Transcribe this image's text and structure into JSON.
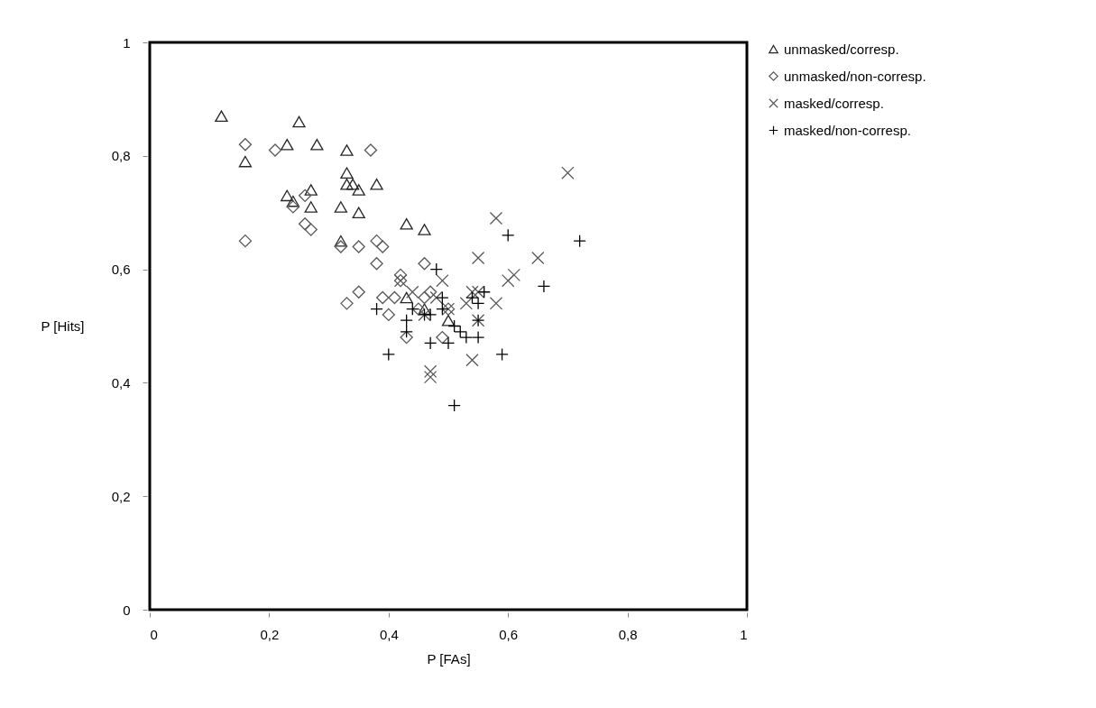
{
  "chart_data": {
    "type": "scatter",
    "xlabel": "P [FAs]",
    "ylabel": "P [Hits]",
    "xlim": [
      0,
      1
    ],
    "ylim": [
      0,
      1
    ],
    "xticks": [
      0,
      {
        "value": 0.2,
        "label": "0,2"
      },
      {
        "value": 0.4,
        "label": "0,4"
      },
      {
        "value": 0.6,
        "label": "0,6"
      },
      {
        "value": 0.8,
        "label": "0,8"
      },
      1
    ],
    "yticks": [
      0,
      {
        "value": 0.2,
        "label": "0,2"
      },
      {
        "value": 0.4,
        "label": "0,4"
      },
      {
        "value": 0.6,
        "label": "0,6"
      },
      {
        "value": 0.8,
        "label": "0,8"
      },
      1
    ],
    "grid": false,
    "legend": "right",
    "series": [
      {
        "name": "unmasked/corresp.",
        "color": "#262626",
        "marker": "triangle",
        "x": [
          0.12,
          0.25,
          0.23,
          0.28,
          0.33,
          0.16,
          0.33,
          0.33,
          0.34,
          0.35,
          0.38,
          0.27,
          0.23,
          0.24,
          0.27,
          0.32,
          0.35,
          0.43,
          0.46,
          0.32,
          0.43,
          0.46,
          0.5
        ],
        "values": [
          0.87,
          0.86,
          0.82,
          0.82,
          0.81,
          0.79,
          0.77,
          0.75,
          0.75,
          0.74,
          0.75,
          0.74,
          0.73,
          0.72,
          0.71,
          0.71,
          0.7,
          0.68,
          0.67,
          0.65,
          0.55,
          0.53,
          0.51
        ]
      },
      {
        "name": "unmasked/non-corresp.",
        "color": "#595959",
        "marker": "diamond",
        "x": [
          0.16,
          0.21,
          0.37,
          0.16,
          0.24,
          0.26,
          0.26,
          0.27,
          0.32,
          0.35,
          0.38,
          0.39,
          0.38,
          0.46,
          0.42,
          0.42,
          0.33,
          0.35,
          0.39,
          0.4,
          0.43,
          0.46,
          0.47,
          0.49,
          0.5,
          0.45,
          0.41
        ],
        "values": [
          0.82,
          0.81,
          0.81,
          0.65,
          0.71,
          0.73,
          0.68,
          0.67,
          0.64,
          0.64,
          0.65,
          0.64,
          0.61,
          0.61,
          0.59,
          0.58,
          0.54,
          0.56,
          0.55,
          0.52,
          0.48,
          0.55,
          0.56,
          0.48,
          0.53,
          0.53,
          0.55
        ]
      },
      {
        "name": "masked/corresp.",
        "color": "#595959",
        "marker": "cross",
        "x": [
          0.7,
          0.58,
          0.55,
          0.65,
          0.61,
          0.6,
          0.54,
          0.55,
          0.58,
          0.49,
          0.5,
          0.53,
          0.55,
          0.54,
          0.47,
          0.47,
          0.48,
          0.42,
          0.44,
          0.46
        ],
        "values": [
          0.77,
          0.69,
          0.62,
          0.62,
          0.59,
          0.58,
          0.56,
          0.56,
          0.54,
          0.58,
          0.53,
          0.54,
          0.51,
          0.44,
          0.42,
          0.41,
          0.55,
          0.58,
          0.56,
          0.52
        ]
      },
      {
        "name": "masked/non-corresp.",
        "color": "#000000",
        "marker": "plus",
        "x": [
          0.72,
          0.6,
          0.66,
          0.48,
          0.56,
          0.55,
          0.54,
          0.38,
          0.44,
          0.43,
          0.43,
          0.47,
          0.49,
          0.49,
          0.5,
          0.51,
          0.52,
          0.53,
          0.55,
          0.55,
          0.47,
          0.4,
          0.59,
          0.51,
          0.46
        ],
        "values": [
          0.65,
          0.66,
          0.57,
          0.6,
          0.56,
          0.54,
          0.55,
          0.53,
          0.53,
          0.51,
          0.49,
          0.52,
          0.53,
          0.55,
          0.47,
          0.5,
          0.49,
          0.48,
          0.48,
          0.51,
          0.47,
          0.45,
          0.45,
          0.36,
          0.52
        ]
      }
    ]
  }
}
